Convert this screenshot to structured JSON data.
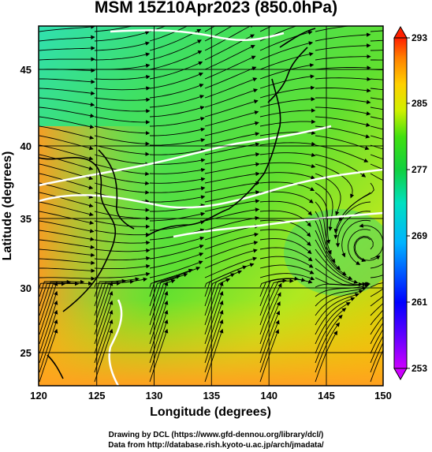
{
  "title": "MSM 15Z10Apr2023 (850.0hPa)",
  "axes": {
    "xlabel": "Longitude (degrees)",
    "ylabel": "Latitude  (degrees)",
    "xticks": [
      "120",
      "125",
      "130",
      "135",
      "140",
      "145",
      "150"
    ],
    "yticks": [
      "25",
      "30",
      "35",
      "40",
      "45"
    ]
  },
  "colorbar": {
    "ticks": [
      "293",
      "285",
      "277",
      "269",
      "261",
      "253"
    ],
    "colors": [
      "#cc00ff",
      "#0000ff",
      "#00b4ff",
      "#00e0e0",
      "#00e070",
      "#10d010",
      "#80e000",
      "#d0f000",
      "#ffd000",
      "#ff8000",
      "#ff2000"
    ]
  },
  "footer": {
    "line1": "Drawing by DCL (https://www.gfd-dennou.org/library/dcl/)",
    "line2": "Data from http://database.rish.kyoto-u.ac.jp/arch/jmadata/"
  }
}
